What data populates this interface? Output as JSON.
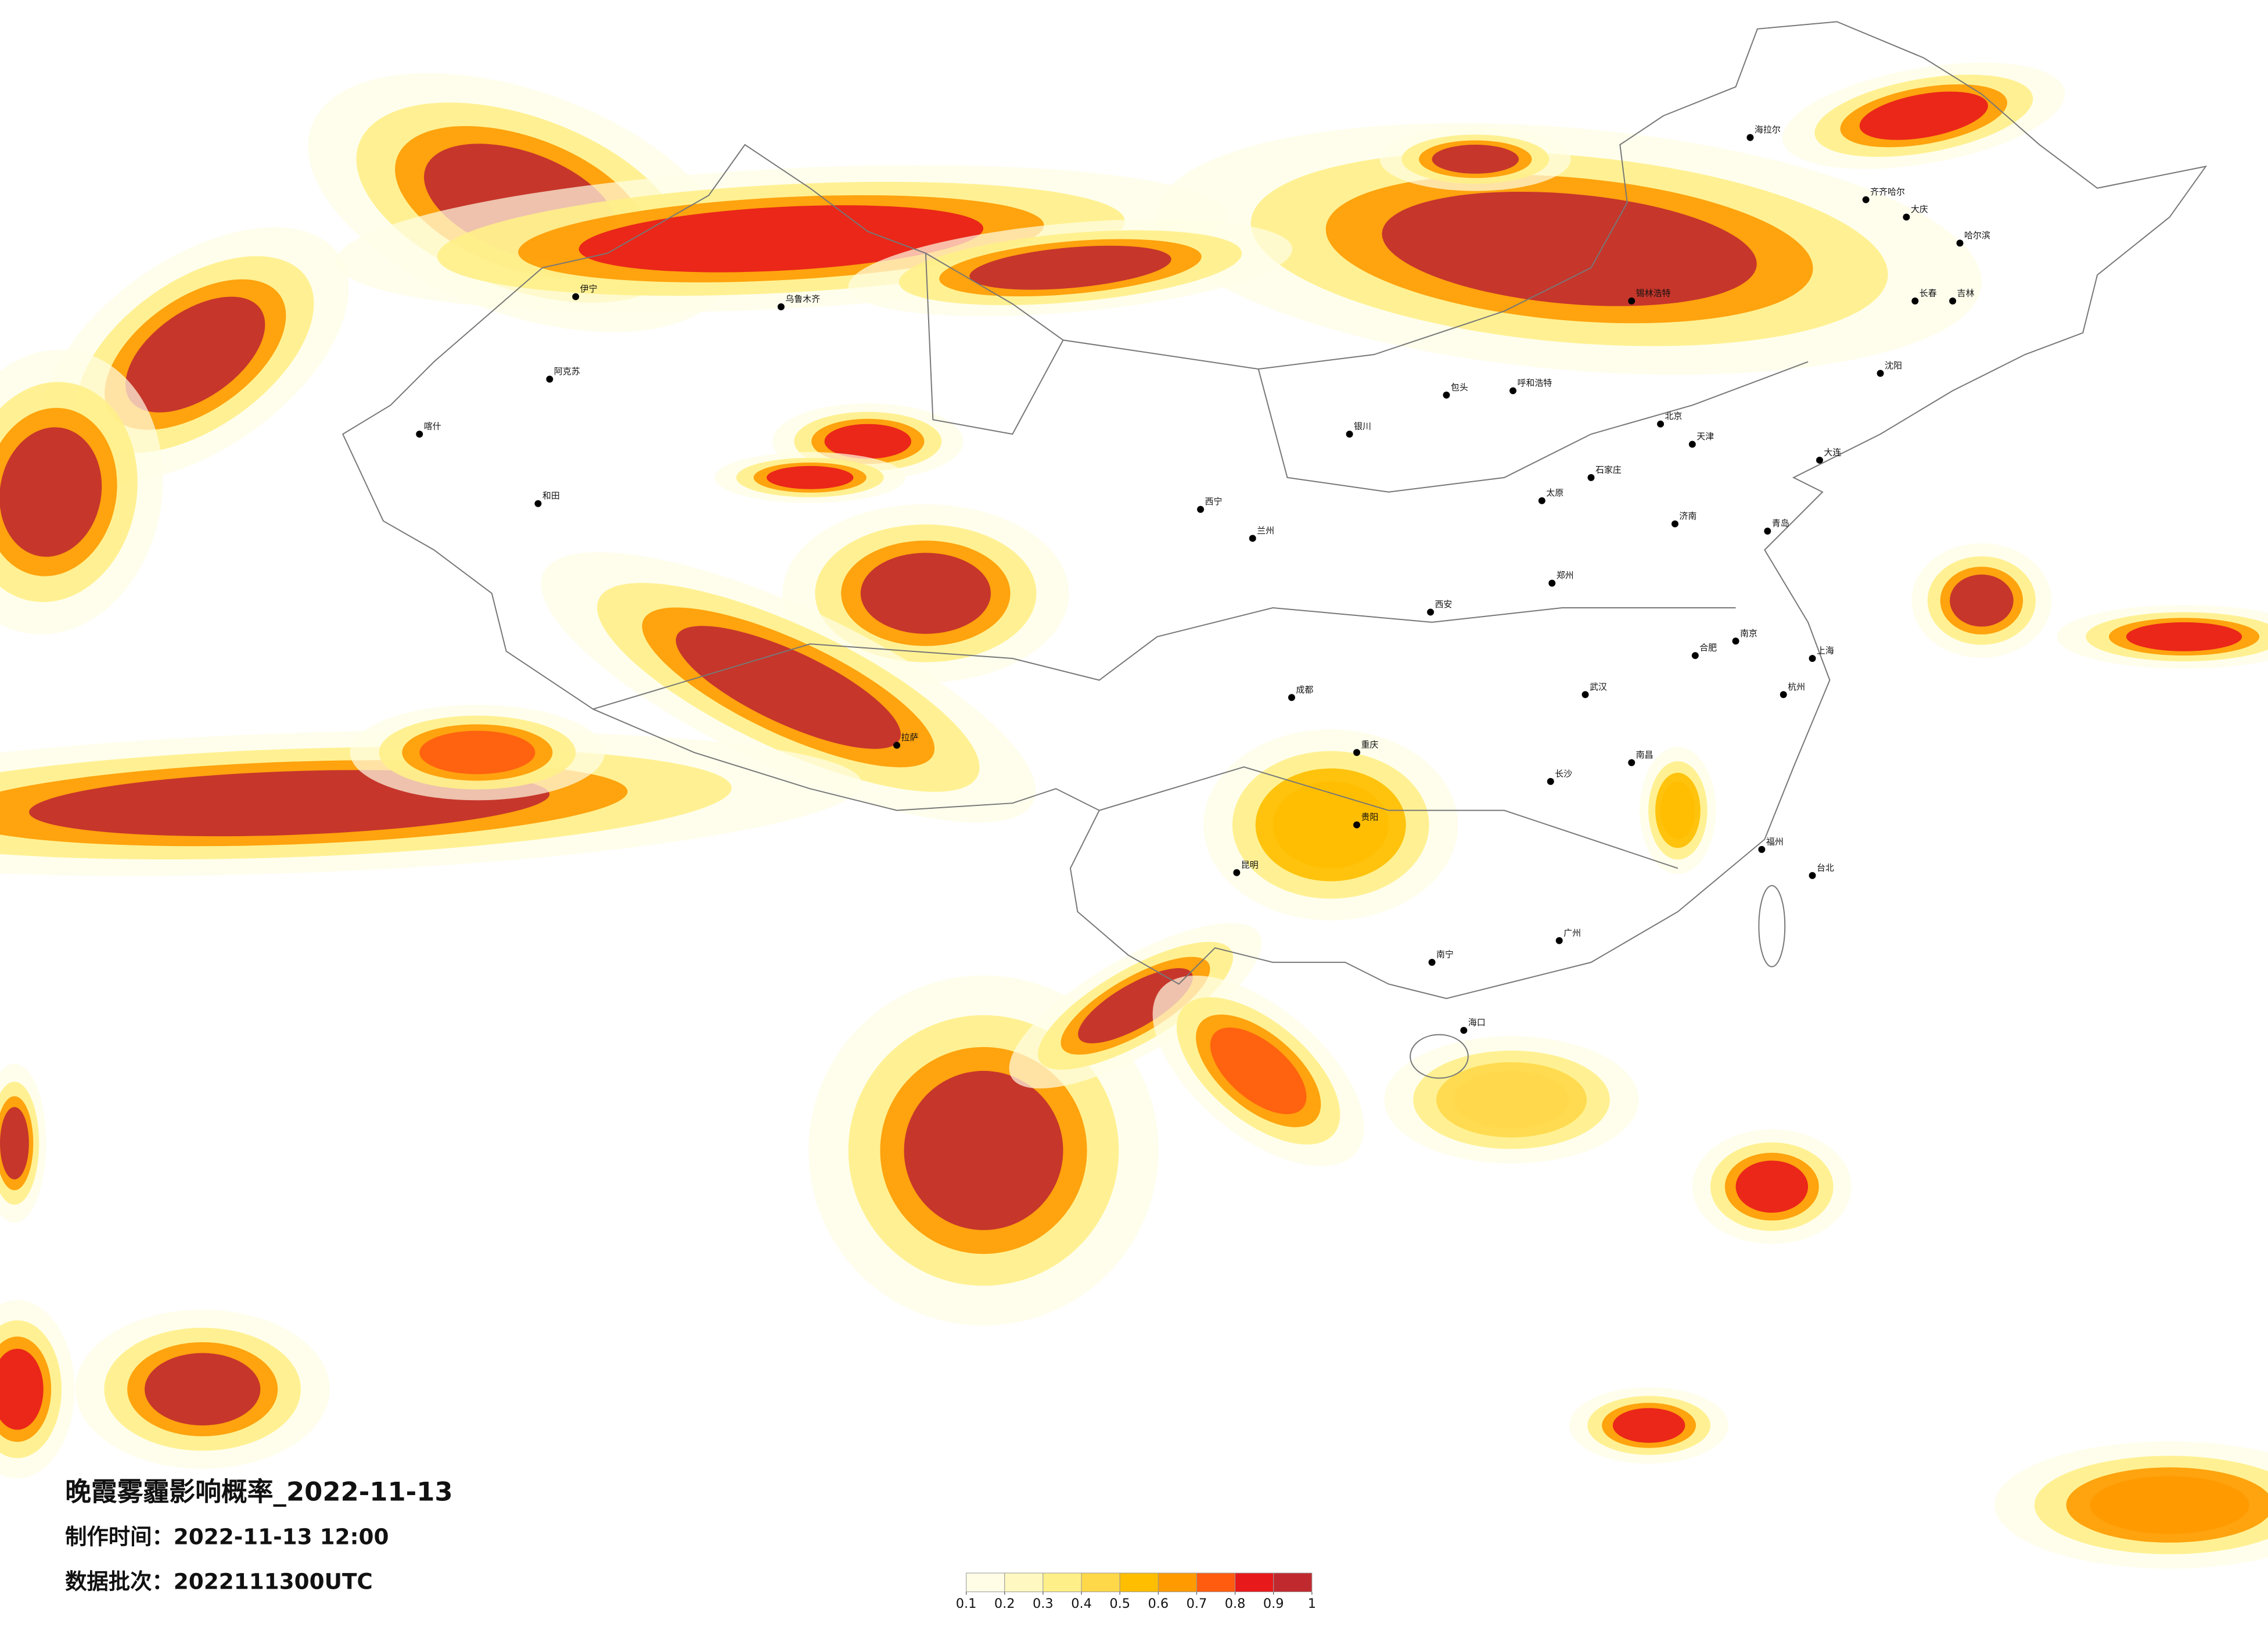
{
  "title": "晚霞雾霾影响概率_2022-11-13",
  "made_time": {
    "label": "制作时间：",
    "value": "2022-11-13 12:00"
  },
  "batch": {
    "label": "数据批次：",
    "value": "2022111300UTC"
  },
  "colorbar": {
    "colors": [
      "#fffde6",
      "#fff8c0",
      "#ffef88",
      "#ffd84a",
      "#ffbe00",
      "#ff9a00",
      "#ff5c10",
      "#e8191b",
      "#c02a2f"
    ],
    "ticks": [
      0.1,
      0.2,
      0.3,
      0.4,
      0.5,
      0.6,
      0.7,
      0.8,
      0.9,
      1
    ]
  },
  "cities": [
    "海拉尔",
    "齐齐哈尔",
    "大庆",
    "哈尔滨",
    "长春",
    "吉林",
    "沈阳",
    "大连",
    "北京",
    "天津",
    "石家庄",
    "太原",
    "呼和浩特",
    "包头",
    "银川",
    "兰州",
    "西宁",
    "西安",
    "郑州",
    "济南",
    "青岛",
    "南京",
    "上海",
    "杭州",
    "合肥",
    "武汉",
    "长沙",
    "南昌",
    "福州",
    "台北",
    "广州",
    "南宁",
    "海口",
    "贵阳",
    "昆明",
    "成都",
    "重庆",
    "拉萨",
    "乌鲁木齐",
    "伊宁",
    "阿克苏",
    "和田",
    "喀什",
    "锡林浩特"
  ]
}
